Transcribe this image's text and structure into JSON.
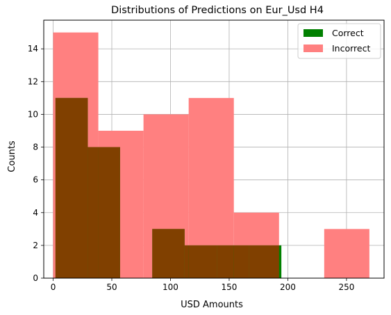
{
  "chart_data": {
    "type": "bar",
    "title": "Distributions of Predictions on Eur_Usd H4",
    "xlabel": "USD Amounts",
    "ylabel": "Counts",
    "xlim": [
      -8,
      282
    ],
    "ylim": [
      0,
      15.75
    ],
    "xticks": [
      0,
      50,
      100,
      150,
      200,
      250
    ],
    "yticks": [
      0,
      2,
      4,
      6,
      8,
      10,
      12,
      14
    ],
    "grid": true,
    "legend_position": "top-right",
    "overlap_color": "#804000",
    "series": [
      {
        "name": "Correct",
        "color": "#008000",
        "alpha": 1.0,
        "bins": [
          {
            "x0": 2,
            "x1": 29.5,
            "count": 11
          },
          {
            "x0": 29.5,
            "x1": 57,
            "count": 8
          },
          {
            "x0": 57,
            "x1": 84.5,
            "count": 0
          },
          {
            "x0": 84.5,
            "x1": 112,
            "count": 3
          },
          {
            "x0": 112,
            "x1": 139.5,
            "count": 2
          },
          {
            "x0": 139.5,
            "x1": 167,
            "count": 2
          },
          {
            "x0": 167,
            "x1": 194.5,
            "count": 2
          }
        ]
      },
      {
        "name": "Incorrect",
        "color": "#ff8080",
        "alpha": 1.0,
        "bins": [
          {
            "x0": 0,
            "x1": 38.5,
            "count": 15
          },
          {
            "x0": 38.5,
            "x1": 77,
            "count": 9
          },
          {
            "x0": 77,
            "x1": 115.5,
            "count": 10
          },
          {
            "x0": 115.5,
            "x1": 154,
            "count": 11
          },
          {
            "x0": 154,
            "x1": 192.5,
            "count": 4
          },
          {
            "x0": 192.5,
            "x1": 231,
            "count": 0
          },
          {
            "x0": 231,
            "x1": 269.5,
            "count": 3
          }
        ]
      }
    ]
  }
}
